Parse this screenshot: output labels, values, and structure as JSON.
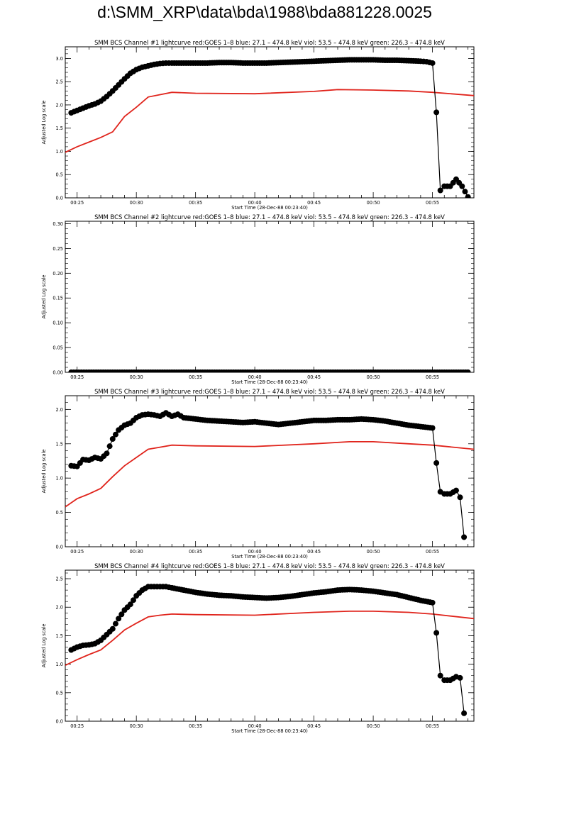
{
  "page": {
    "title": "d:\\SMM_XRP\\data\\bda\\1988\\bda881228.0025"
  },
  "colors": {
    "goes": "#e0241c",
    "bcs": "#000000",
    "axis": "#000000"
  },
  "chart_data": [
    {
      "type": "line",
      "title": "SMM BCS Channel #1 lightcurve  red:GOES 1–8  blue: 27.1 – 474.8 keV  viol: 53.5 – 474.8 keV  green: 226.3 – 474.8 keV",
      "xlabel": "Start Time (28-Dec-88 00:23:40)",
      "ylabel": "Adjusted Log scale",
      "xlim": [
        "00:24:00",
        "00:58:30"
      ],
      "ylim": [
        0,
        3.25
      ],
      "xticks": [
        "00:25",
        "00:30",
        "00:35",
        "00:40",
        "00:45",
        "00:50",
        "00:55"
      ],
      "yticks": [
        "0.0",
        "0.5",
        "1.0",
        "1.5",
        "2.0",
        "2.5",
        "3.0"
      ],
      "grid": false,
      "series": [
        {
          "color": "red",
          "style": "line",
          "x": [
            "00:24:00",
            "00:25:00",
            "00:26:00",
            "00:27:00",
            "00:28:00",
            "00:29:00",
            "00:30:00",
            "00:31:00",
            "00:32:00",
            "00:33:00",
            "00:35:00",
            "00:40:00",
            "00:45:00",
            "00:47:00",
            "00:50:00",
            "00:53:00",
            "00:55:00",
            "00:58:30"
          ],
          "values": [
            0.98,
            1.1,
            1.2,
            1.3,
            1.42,
            1.75,
            1.95,
            2.17,
            2.22,
            2.27,
            2.25,
            2.24,
            2.29,
            2.33,
            2.32,
            2.3,
            2.27,
            2.2
          ]
        },
        {
          "color": "black",
          "style": "line-markers",
          "x": [
            "00:24:30",
            "00:25:00",
            "00:25:30",
            "00:26:00",
            "00:26:30",
            "00:27:00",
            "00:27:30",
            "00:28:00",
            "00:28:30",
            "00:29:00",
            "00:29:30",
            "00:30:00",
            "00:30:30",
            "00:31:00",
            "00:31:30",
            "00:32:00",
            "00:32:30",
            "00:33:00",
            "00:34:00",
            "00:35:00",
            "00:36:00",
            "00:37:00",
            "00:38:00",
            "00:39:00",
            "00:40:00",
            "00:41:00",
            "00:42:00",
            "00:43:00",
            "00:44:00",
            "00:45:00",
            "00:46:00",
            "00:47:00",
            "00:48:00",
            "00:49:00",
            "00:50:00",
            "00:51:00",
            "00:52:00",
            "00:53:00",
            "00:54:00",
            "00:54:30",
            "00:55:00",
            "00:55:20",
            "00:55:40",
            "00:56:00",
            "00:56:30",
            "00:57:00",
            "00:57:30",
            "00:58:00"
          ],
          "values": [
            1.83,
            1.88,
            1.93,
            1.98,
            2.02,
            2.08,
            2.18,
            2.3,
            2.43,
            2.56,
            2.68,
            2.76,
            2.81,
            2.84,
            2.87,
            2.89,
            2.9,
            2.9,
            2.9,
            2.9,
            2.9,
            2.91,
            2.91,
            2.9,
            2.9,
            2.9,
            2.91,
            2.92,
            2.93,
            2.94,
            2.95,
            2.96,
            2.97,
            2.97,
            2.97,
            2.96,
            2.96,
            2.95,
            2.94,
            2.93,
            2.9,
            1.84,
            0.16,
            0.25,
            0.25,
            0.4,
            0.25,
            0.02
          ]
        }
      ]
    },
    {
      "type": "line",
      "title": "SMM BCS Channel #2 lightcurve  red:GOES 1–8  blue: 27.1 – 474.8 keV  viol: 53.5 – 474.8 keV  green: 226.3 – 474.8 keV",
      "xlabel": "Start Time (28-Dec-88 00:23:40)",
      "ylabel": "Adjusted Log scale",
      "xlim": [
        "00:24:00",
        "00:58:30"
      ],
      "ylim": [
        0,
        0.305
      ],
      "xticks": [
        "00:25",
        "00:30",
        "00:35",
        "00:40",
        "00:45",
        "00:50",
        "00:55"
      ],
      "yticks": [
        "0.00",
        "0.05",
        "0.10",
        "0.15",
        "0.20",
        "0.25",
        "0.30"
      ],
      "grid": false,
      "series": [
        {
          "color": "black",
          "style": "line-markers",
          "x": [
            "00:24:30",
            "00:26:00",
            "00:28:00",
            "00:30:00",
            "00:32:00",
            "00:34:00",
            "00:36:00",
            "00:38:00",
            "00:40:00",
            "00:42:00",
            "00:44:00",
            "00:46:00",
            "00:48:00",
            "00:50:00",
            "00:52:00",
            "00:54:00",
            "00:56:00",
            "00:58:00"
          ],
          "values": [
            0,
            0,
            0,
            0,
            0,
            0,
            0,
            0,
            0,
            0,
            0,
            0,
            0,
            0,
            0,
            0,
            0,
            0
          ]
        }
      ]
    },
    {
      "type": "line",
      "title": "SMM BCS Channel #3 lightcurve  red:GOES 1–8  blue: 27.1 – 474.8 keV  viol: 53.5 – 474.8 keV  green: 226.3 – 474.8 keV",
      "xlabel": "Start Time (28-Dec-88 00:23:40)",
      "ylabel": "Adjusted Log scale",
      "xlim": [
        "00:24:00",
        "00:58:30"
      ],
      "ylim": [
        0,
        2.2
      ],
      "xticks": [
        "00:25",
        "00:30",
        "00:35",
        "00:40",
        "00:45",
        "00:50",
        "00:55"
      ],
      "yticks": [
        "0.0",
        "0.5",
        "1.0",
        "1.5",
        "2.0"
      ],
      "grid": false,
      "series": [
        {
          "color": "red",
          "style": "line",
          "x": [
            "00:24:00",
            "00:25:00",
            "00:26:00",
            "00:27:00",
            "00:28:00",
            "00:29:00",
            "00:30:00",
            "00:31:00",
            "00:32:00",
            "00:33:00",
            "00:35:00",
            "00:40:00",
            "00:45:00",
            "00:48:00",
            "00:50:00",
            "00:53:00",
            "00:55:00",
            "00:58:30"
          ],
          "values": [
            0.58,
            0.7,
            0.77,
            0.85,
            1.02,
            1.18,
            1.3,
            1.42,
            1.45,
            1.48,
            1.47,
            1.46,
            1.5,
            1.53,
            1.53,
            1.5,
            1.48,
            1.42
          ]
        },
        {
          "color": "black",
          "style": "line-markers",
          "x": [
            "00:24:30",
            "00:25:00",
            "00:25:30",
            "00:26:00",
            "00:26:30",
            "00:27:00",
            "00:27:30",
            "00:28:00",
            "00:28:30",
            "00:29:00",
            "00:29:30",
            "00:30:00",
            "00:30:30",
            "00:31:00",
            "00:31:30",
            "00:32:00",
            "00:32:30",
            "00:33:00",
            "00:33:30",
            "00:34:00",
            "00:35:00",
            "00:36:00",
            "00:37:00",
            "00:38:00",
            "00:39:00",
            "00:40:00",
            "00:41:00",
            "00:42:00",
            "00:43:00",
            "00:44:00",
            "00:45:00",
            "00:46:00",
            "00:47:00",
            "00:48:00",
            "00:49:00",
            "00:50:00",
            "00:51:00",
            "00:52:00",
            "00:53:00",
            "00:54:00",
            "00:55:00",
            "00:55:20",
            "00:55:40",
            "00:56:00",
            "00:56:30",
            "00:57:00",
            "00:57:20",
            "00:57:40"
          ],
          "values": [
            1.18,
            1.17,
            1.27,
            1.26,
            1.3,
            1.28,
            1.36,
            1.57,
            1.7,
            1.77,
            1.8,
            1.88,
            1.92,
            1.93,
            1.92,
            1.9,
            1.95,
            1.9,
            1.93,
            1.88,
            1.86,
            1.84,
            1.83,
            1.82,
            1.81,
            1.82,
            1.8,
            1.78,
            1.8,
            1.82,
            1.84,
            1.84,
            1.85,
            1.85,
            1.86,
            1.85,
            1.83,
            1.8,
            1.77,
            1.75,
            1.73,
            1.22,
            0.8,
            0.77,
            0.77,
            0.82,
            0.72,
            0.14
          ]
        }
      ]
    },
    {
      "type": "line",
      "title": "SMM BCS Channel #4 lightcurve  red:GOES 1–8  blue: 27.1 – 474.8 keV  viol: 53.5 – 474.8 keV  green: 226.3 – 474.8 keV",
      "xlabel": "Start Time (28-Dec-88 00:23:40)",
      "ylabel": "Adjusted Log scale",
      "xlim": [
        "00:24:00",
        "00:58:30"
      ],
      "ylim": [
        0,
        2.65
      ],
      "xticks": [
        "00:25",
        "00:30",
        "00:35",
        "00:40",
        "00:45",
        "00:50",
        "00:55"
      ],
      "yticks": [
        "0.0",
        "0.5",
        "1.0",
        "1.5",
        "2.0",
        "2.5"
      ],
      "grid": false,
      "series": [
        {
          "color": "red",
          "style": "line",
          "x": [
            "00:24:00",
            "00:25:00",
            "00:26:00",
            "00:27:00",
            "00:28:00",
            "00:29:00",
            "00:30:00",
            "00:31:00",
            "00:32:00",
            "00:33:00",
            "00:35:00",
            "00:40:00",
            "00:45:00",
            "00:48:00",
            "00:50:00",
            "00:53:00",
            "00:55:00",
            "00:58:30"
          ],
          "values": [
            0.98,
            1.08,
            1.17,
            1.25,
            1.42,
            1.6,
            1.72,
            1.83,
            1.86,
            1.88,
            1.87,
            1.86,
            1.91,
            1.93,
            1.93,
            1.91,
            1.88,
            1.8
          ]
        },
        {
          "color": "black",
          "style": "line-markers",
          "x": [
            "00:24:30",
            "00:25:00",
            "00:25:30",
            "00:26:00",
            "00:26:30",
            "00:27:00",
            "00:27:30",
            "00:28:00",
            "00:28:30",
            "00:29:00",
            "00:29:30",
            "00:30:00",
            "00:30:30",
            "00:31:00",
            "00:31:30",
            "00:32:00",
            "00:32:30",
            "00:33:00",
            "00:34:00",
            "00:35:00",
            "00:36:00",
            "00:37:00",
            "00:38:00",
            "00:39:00",
            "00:40:00",
            "00:41:00",
            "00:42:00",
            "00:43:00",
            "00:44:00",
            "00:45:00",
            "00:46:00",
            "00:47:00",
            "00:48:00",
            "00:49:00",
            "00:50:00",
            "00:51:00",
            "00:52:00",
            "00:53:00",
            "00:54:00",
            "00:55:00",
            "00:55:20",
            "00:55:40",
            "00:56:00",
            "00:56:30",
            "00:57:00",
            "00:57:20",
            "00:57:40"
          ],
          "values": [
            1.25,
            1.3,
            1.33,
            1.34,
            1.36,
            1.42,
            1.52,
            1.62,
            1.8,
            1.95,
            2.05,
            2.2,
            2.3,
            2.36,
            2.36,
            2.36,
            2.36,
            2.34,
            2.3,
            2.26,
            2.23,
            2.21,
            2.2,
            2.18,
            2.17,
            2.16,
            2.17,
            2.19,
            2.22,
            2.25,
            2.27,
            2.3,
            2.31,
            2.3,
            2.28,
            2.25,
            2.22,
            2.17,
            2.12,
            2.08,
            1.55,
            0.8,
            0.72,
            0.72,
            0.78,
            0.76,
            0.14
          ]
        }
      ]
    }
  ]
}
